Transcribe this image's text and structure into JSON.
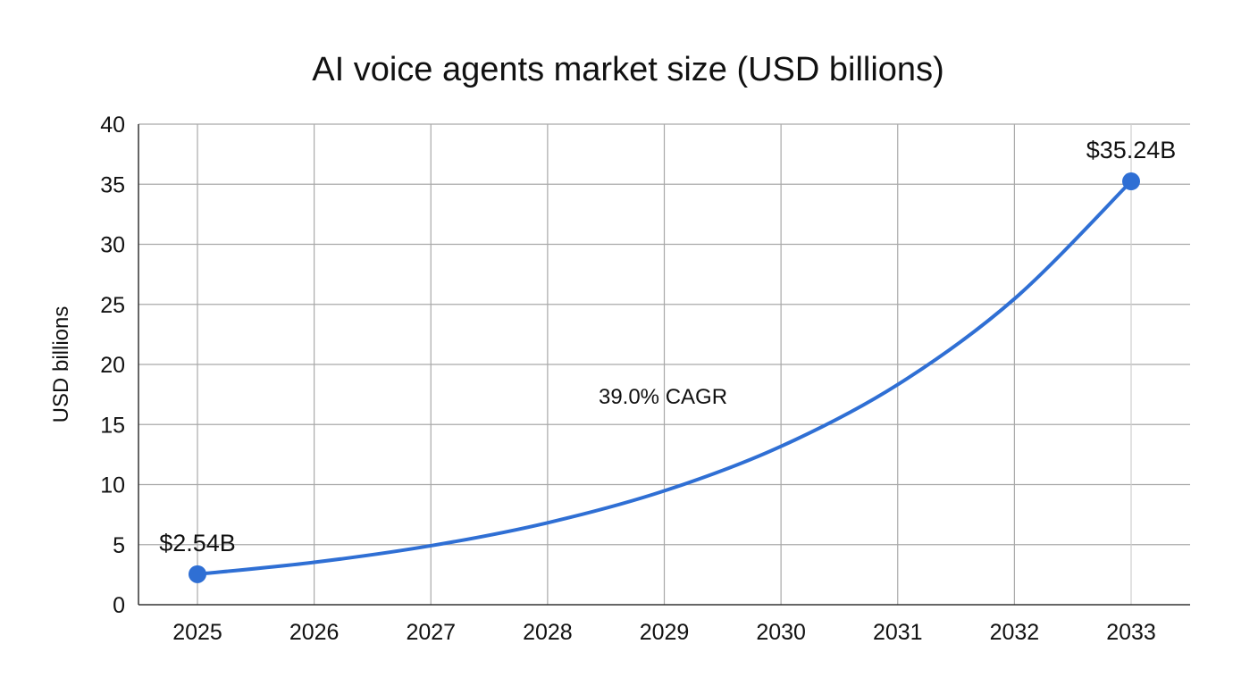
{
  "chart_data": {
    "type": "line",
    "title": "AI voice agents market size (USD billions)",
    "xlabel": "",
    "ylabel": "USD billions",
    "x": [
      "2025",
      "2026",
      "2027",
      "2028",
      "2029",
      "2030",
      "2031",
      "2032",
      "2033"
    ],
    "series": [
      {
        "values": [
          2.54,
          3.53,
          4.91,
          6.82,
          9.48,
          13.18,
          18.32,
          25.46,
          35.24
        ],
        "color": "#2f6fd4"
      }
    ],
    "ylim": [
      0,
      40
    ],
    "yticks": [
      0,
      5,
      10,
      15,
      20,
      25,
      30,
      35,
      40
    ],
    "grid": true,
    "legend": "none",
    "point_labels": [
      {
        "x": "2025",
        "y": 2.54,
        "text": "$2.54B"
      },
      {
        "x": "2033",
        "y": 35.24,
        "text": "$35.24B"
      }
    ],
    "annotation": {
      "text": "39.0% CAGR"
    }
  }
}
